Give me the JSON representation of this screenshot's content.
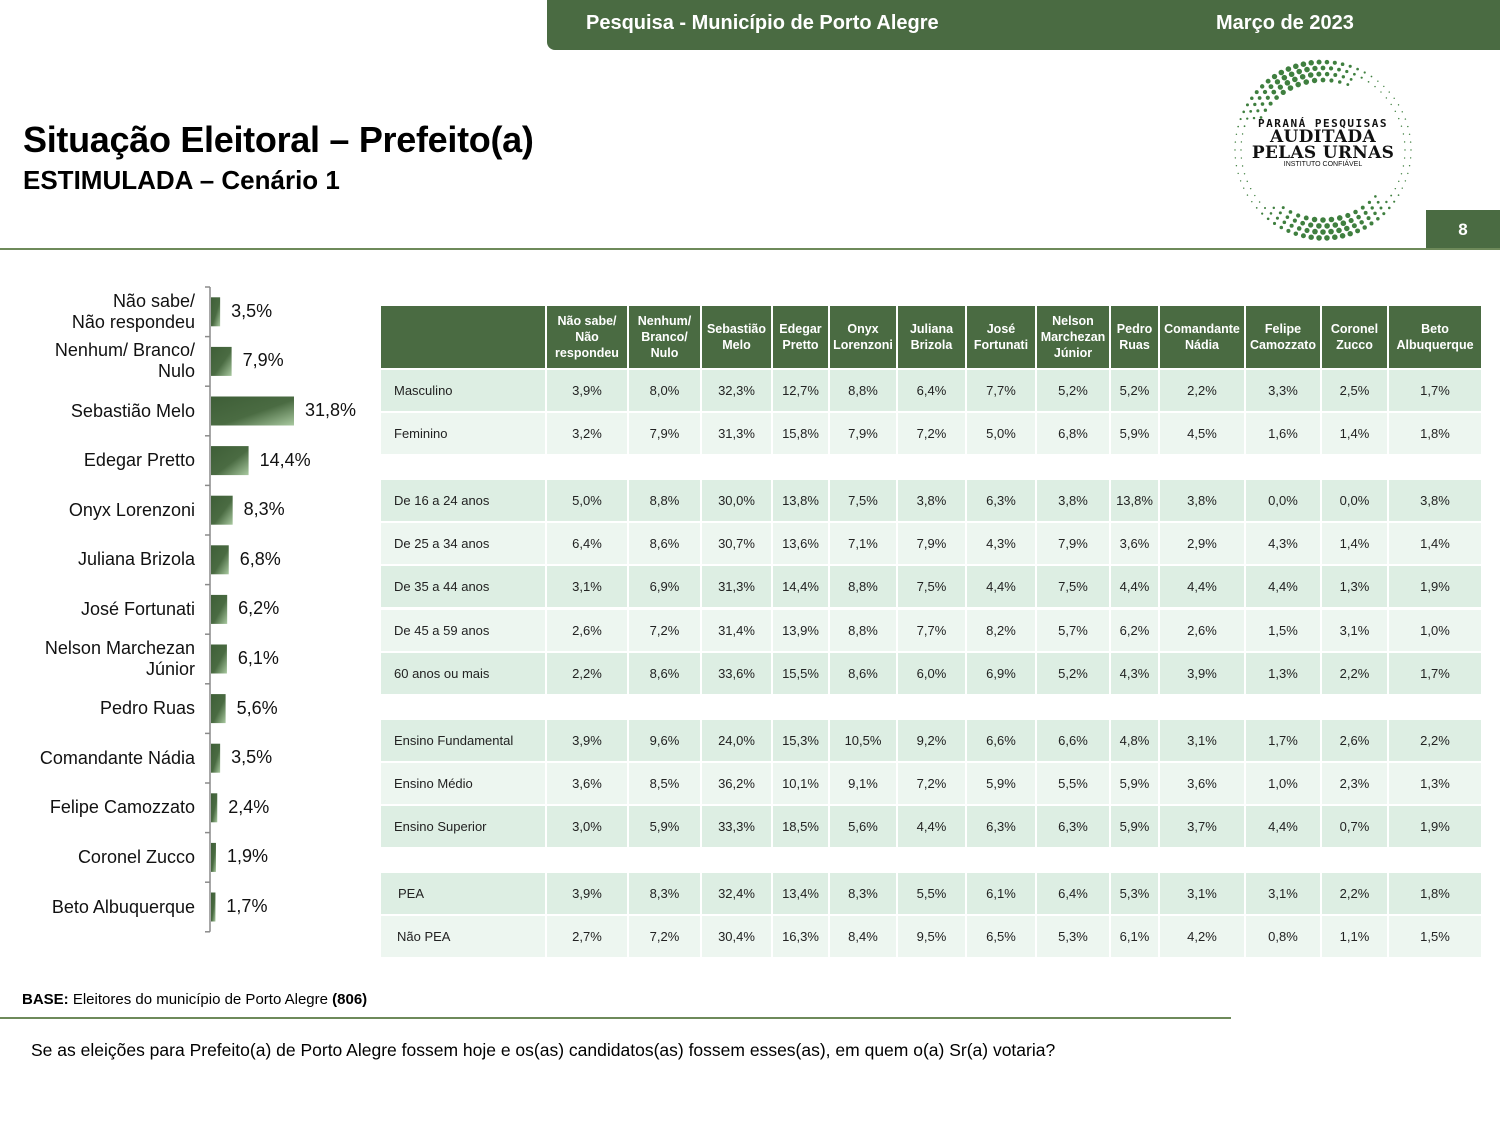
{
  "header": {
    "survey_title": "Pesquisa - Município de Porto Alegre",
    "date": "Março de 2023"
  },
  "page": {
    "title": "Situação Eleitoral – Prefeito(a)",
    "subtitle": "ESTIMULADA – Cenário 1",
    "page_number": "8"
  },
  "logo": {
    "line1": "PARANÁ PESQUISAS",
    "line2": "AUDITADA",
    "line3": "PELAS URNAS",
    "line4": "INSTITUTO CONFIÁVEL"
  },
  "colors": {
    "brand_green": "#4a6b42",
    "row_dark": "#ddeee3",
    "row_light": "#edf6f0"
  },
  "chart_data": {
    "type": "bar",
    "orientation": "horizontal",
    "title": "",
    "xlabel": "",
    "ylabel": "",
    "xlim": [
      0,
      40
    ],
    "grid": false,
    "categories": [
      "Não sabe/\nNão respondeu",
      "Nenhum/ Branco/\nNulo",
      "Sebastião Melo",
      "Edegar Pretto",
      "Onyx Lorenzoni",
      "Juliana Brizola",
      "José Fortunati",
      "Nelson Marchezan\nJúnior",
      "Pedro Ruas",
      "Comandante Nádia",
      "Felipe Camozzato",
      "Coronel Zucco",
      "Beto Albuquerque"
    ],
    "values": [
      3.5,
      7.9,
      31.8,
      14.4,
      8.3,
      6.8,
      6.2,
      6.1,
      5.6,
      3.5,
      2.4,
      1.9,
      1.7
    ],
    "value_labels": [
      "3,5%",
      "7,9%",
      "31,8%",
      "14,4%",
      "8,3%",
      "6,8%",
      "6,2%",
      "6,1%",
      "5,6%",
      "3,5%",
      "2,4%",
      "1,9%",
      "1,7%"
    ]
  },
  "table": {
    "headers": [
      "",
      "Não sabe/\nNão\nrespondeu",
      "Nenhum/\nBranco/\nNulo",
      "Sebastião\nMelo",
      "Edegar\nPretto",
      "Onyx\nLorenzoni",
      "Juliana\nBrizola",
      "José\nFortunati",
      "Nelson\nMarchezan\nJúnior",
      "Pedro\nRuas",
      "Comandante\nNádia",
      "Felipe\nCamozzato",
      "Coronel\nZucco",
      "Beto\nAlbuquerque"
    ],
    "groups": [
      {
        "rows": [
          {
            "label": "Masculino",
            "values": [
              "3,9%",
              "8,0%",
              "32,3%",
              "12,7%",
              "8,8%",
              "6,4%",
              "7,7%",
              "5,2%",
              "5,2%",
              "2,2%",
              "3,3%",
              "2,5%",
              "1,7%"
            ]
          },
          {
            "label": "Feminino",
            "values": [
              "3,2%",
              "7,9%",
              "31,3%",
              "15,8%",
              "7,9%",
              "7,2%",
              "5,0%",
              "6,8%",
              "5,9%",
              "4,5%",
              "1,6%",
              "1,4%",
              "1,8%"
            ]
          }
        ]
      },
      {
        "rows": [
          {
            "label": "De 16 a 24 anos",
            "values": [
              "5,0%",
              "8,8%",
              "30,0%",
              "13,8%",
              "7,5%",
              "3,8%",
              "6,3%",
              "3,8%",
              "13,8%",
              "3,8%",
              "0,0%",
              "0,0%",
              "3,8%"
            ]
          },
          {
            "label": "De 25 a 34 anos",
            "values": [
              "6,4%",
              "8,6%",
              "30,7%",
              "13,6%",
              "7,1%",
              "7,9%",
              "4,3%",
              "7,9%",
              "3,6%",
              "2,9%",
              "4,3%",
              "1,4%",
              "1,4%"
            ]
          },
          {
            "label": "De 35 a 44 anos",
            "values": [
              "3,1%",
              "6,9%",
              "31,3%",
              "14,4%",
              "8,8%",
              "7,5%",
              "4,4%",
              "7,5%",
              "4,4%",
              "4,4%",
              "4,4%",
              "1,3%",
              "1,9%"
            ]
          },
          {
            "label": "De 45 a 59 anos",
            "values": [
              "2,6%",
              "7,2%",
              "31,4%",
              "13,9%",
              "8,8%",
              "7,7%",
              "8,2%",
              "5,7%",
              "6,2%",
              "2,6%",
              "1,5%",
              "3,1%",
              "1,0%"
            ]
          },
          {
            "label": "60 anos ou mais",
            "values": [
              "2,2%",
              "8,6%",
              "33,6%",
              "15,5%",
              "8,6%",
              "6,0%",
              "6,9%",
              "5,2%",
              "4,3%",
              "3,9%",
              "1,3%",
              "2,2%",
              "1,7%"
            ]
          }
        ]
      },
      {
        "rows": [
          {
            "label": "Ensino Fundamental",
            "values": [
              "3,9%",
              "9,6%",
              "24,0%",
              "15,3%",
              "10,5%",
              "9,2%",
              "6,6%",
              "6,6%",
              "4,8%",
              "3,1%",
              "1,7%",
              "2,6%",
              "2,2%"
            ]
          },
          {
            "label": "Ensino Médio",
            "values": [
              "3,6%",
              "8,5%",
              "36,2%",
              "10,1%",
              "9,1%",
              "7,2%",
              "5,9%",
              "5,5%",
              "5,9%",
              "3,6%",
              "1,0%",
              "2,3%",
              "1,3%"
            ]
          },
          {
            "label": "Ensino Superior",
            "values": [
              "3,0%",
              "5,9%",
              "33,3%",
              "18,5%",
              "5,6%",
              "4,4%",
              "6,3%",
              "6,3%",
              "5,9%",
              "3,7%",
              "4,4%",
              "0,7%",
              "1,9%"
            ]
          }
        ]
      },
      {
        "rows": [
          {
            "label": "PEA",
            "values": [
              "3,9%",
              "8,3%",
              "32,4%",
              "13,4%",
              "8,3%",
              "5,5%",
              "6,1%",
              "6,4%",
              "5,3%",
              "3,1%",
              "3,1%",
              "2,2%",
              "1,8%"
            ]
          },
          {
            "label": "Não PEA",
            "values": [
              "2,7%",
              "7,2%",
              "30,4%",
              "16,3%",
              "8,4%",
              "9,5%",
              "6,5%",
              "5,3%",
              "6,1%",
              "4,2%",
              "0,8%",
              "1,1%",
              "1,5%"
            ]
          }
        ]
      }
    ]
  },
  "footer": {
    "base_label": "BASE:",
    "base_text": " Eleitores do município de Porto Alegre ",
    "base_count": "(806)",
    "question": "Se as eleições para Prefeito(a) de Porto Alegre fossem hoje e os(as) candidatos(as) fossem esses(as), em quem o(a) Sr(a) votaria?"
  }
}
